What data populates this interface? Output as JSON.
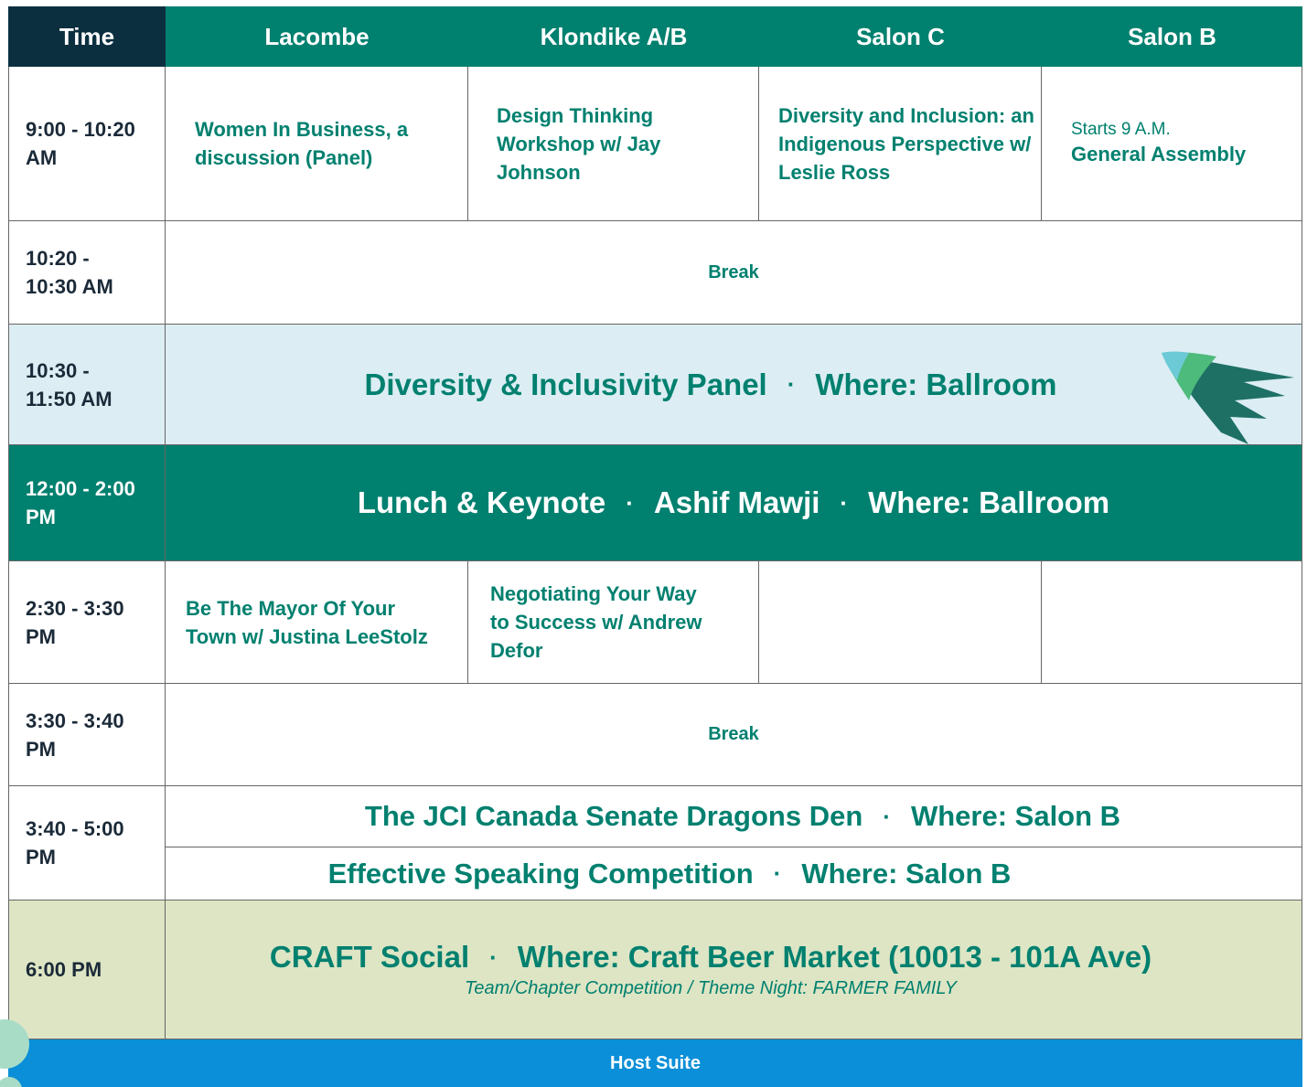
{
  "header": {
    "time": "Time",
    "rooms": [
      "Lacombe",
      "Klondike A/B",
      "Salon C",
      "Salon B"
    ]
  },
  "separator": "·",
  "rows": [
    {
      "time": "9:00 - 10:20 AM",
      "sessions": [
        "Women In Business, a discussion (Panel)",
        "Design Thinking Workshop w/ Jay Johnson",
        "Diversity and Inclusion: an Indigenous Perspective w/ Leslie Ross"
      ],
      "salon_b": {
        "note": "Starts 9 A.M.",
        "title": "General Assembly"
      }
    },
    {
      "time": "10:20 - 10:30 AM",
      "event": "Break"
    },
    {
      "time": "10:30 - 11:50 AM",
      "parts": [
        "Diversity & Inclusivity Panel",
        "Where: Ballroom"
      ]
    },
    {
      "time": "12:00 - 2:00 PM",
      "parts": [
        "Lunch & Keynote",
        "Ashif Mawji",
        "Where: Ballroom"
      ]
    },
    {
      "time": "2:30 - 3:30 PM",
      "sessions": [
        "Be The Mayor Of Your Town w/ Justina LeeStolz",
        "Negotiating Your Way to Success w/ Andrew Defor"
      ]
    },
    {
      "time": "3:30 - 3:40 PM",
      "event": "Break"
    },
    {
      "time": "3:40 - 5:00 PM",
      "lines": [
        [
          "The JCI Canada Senate Dragons Den",
          "Where: Salon B"
        ],
        [
          "Effective Speaking Competition",
          "Where: Salon B"
        ]
      ]
    },
    {
      "time": "6:00 PM",
      "parts": [
        "CRAFT Social",
        "Where: Craft Beer Market (10013 - 101A Ave)"
      ],
      "subtitle": "Team/Chapter Competition / Theme Night: FARMER FAMILY"
    }
  ],
  "footer": "Host Suite"
}
